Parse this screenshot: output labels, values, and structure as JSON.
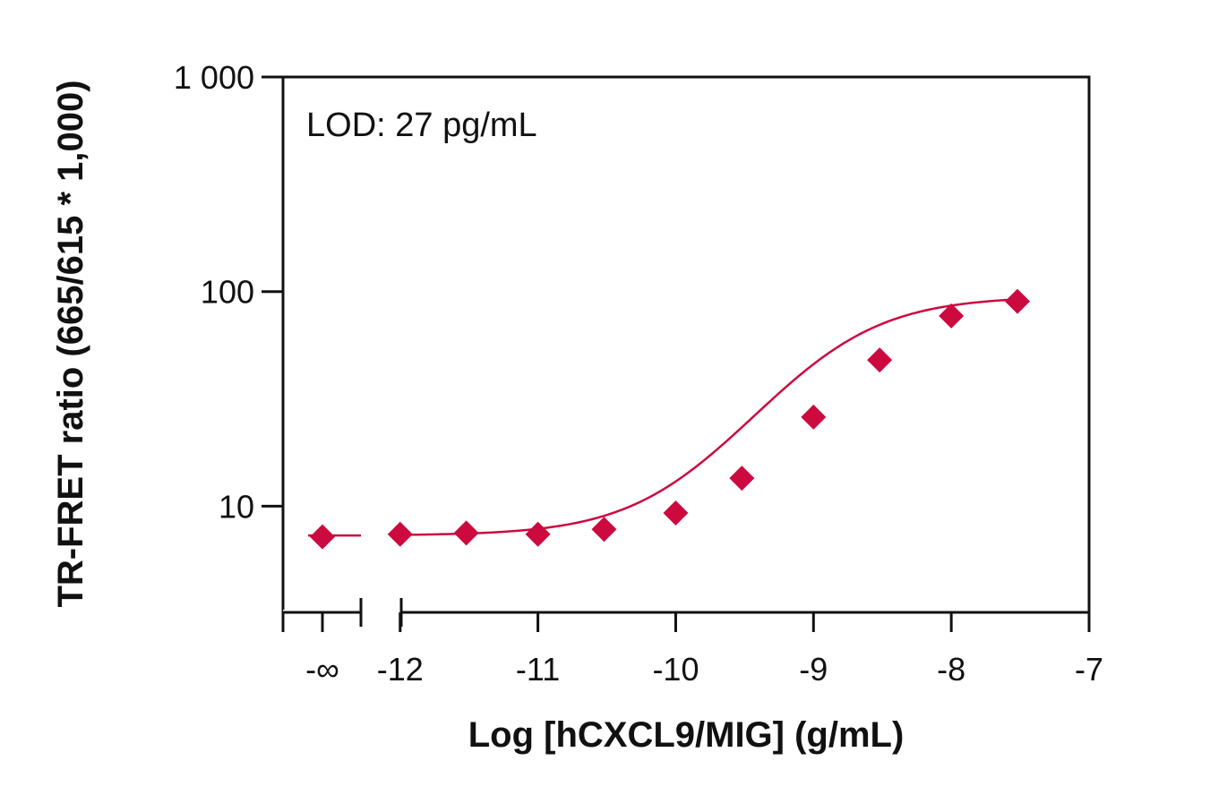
{
  "chart_data": {
    "type": "scatter",
    "title": "",
    "xlabel": "Log [hCXCL9/MIG] (g/mL)",
    "ylabel": "TR-FRET ratio (665/615 * 1,000)",
    "annotation": "LOD: 27 pg/mL",
    "y_scale": "log",
    "ylim": [
      3.2,
      1000
    ],
    "xlim": [
      -12.85,
      -7
    ],
    "grid": false,
    "legend": "none",
    "x_ticks": [
      {
        "value": "-∞",
        "label": "-∞"
      },
      {
        "value": -12,
        "label": "-12"
      },
      {
        "value": -11,
        "label": "-11"
      },
      {
        "value": -10,
        "label": "-10"
      },
      {
        "value": -9,
        "label": "-9"
      },
      {
        "value": -8,
        "label": "-8"
      },
      {
        "value": -7,
        "label": "-7"
      }
    ],
    "y_ticks": [
      {
        "value": 10,
        "label": "10"
      },
      {
        "value": 100,
        "label": "100"
      },
      {
        "value": 1000,
        "label": "1 000"
      }
    ],
    "series": [
      {
        "color": "#cc0a3f",
        "marker": "diamond",
        "points": [
          {
            "x": "-∞",
            "y": 7.2
          },
          {
            "x": -12,
            "y": 7.4
          },
          {
            "x": -11.52,
            "y": 7.5
          },
          {
            "x": -11,
            "y": 7.4
          },
          {
            "x": -10.52,
            "y": 7.8
          },
          {
            "x": -10,
            "y": 9.3
          },
          {
            "x": -9.52,
            "y": 13.5
          },
          {
            "x": -9,
            "y": 26
          },
          {
            "x": -8.52,
            "y": 48
          },
          {
            "x": -8,
            "y": 77
          },
          {
            "x": -7.52,
            "y": 90
          }
        ],
        "fit": {
          "model": "4PL",
          "bottom": 7.3,
          "top": 95,
          "log_ec50": -8.9,
          "hill": 1.05,
          "baseline_at_neg_infinity": 7.3
        }
      }
    ]
  }
}
